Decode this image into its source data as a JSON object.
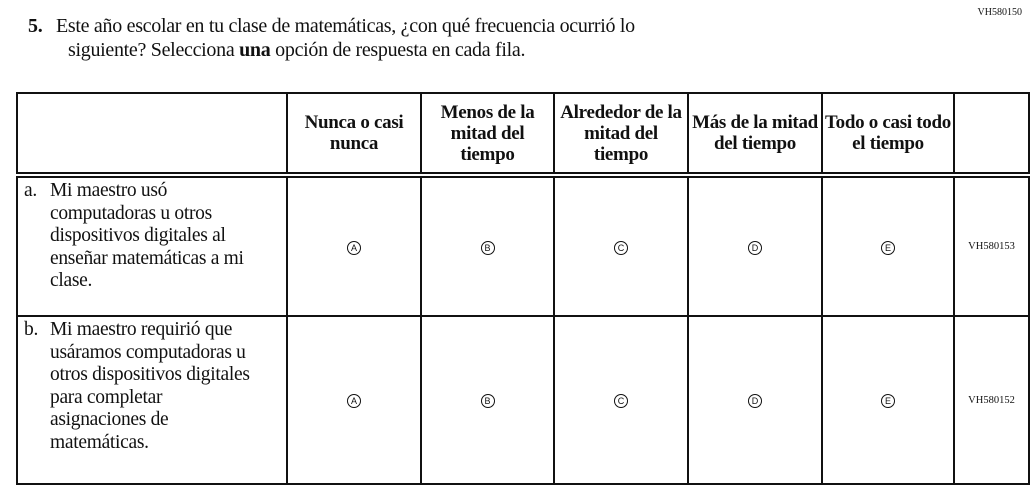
{
  "question_id": "VH580150",
  "question": {
    "number": "5.",
    "line1": "Este año escolar en tu clase de matemáticas, ¿con qué frecuencia ocurrió lo",
    "line2_pre": "siguiente? Selecciona ",
    "line2_bold": "una",
    "line2_post": " opción de respuesta en cada fila."
  },
  "columns": [
    "Nunca o casi nunca",
    "Menos de la mitad del tiempo",
    "Alrededor de la mitad del tiempo",
    "Más de la mitad del tiempo",
    "Todo o casi todo el tiempo"
  ],
  "rows": [
    {
      "label": "a.",
      "text": "Mi maestro usó computadoras u otros dispositivos digitales al enseñar matemáticas a mi clase.",
      "options": [
        "A",
        "B",
        "C",
        "D",
        "E"
      ],
      "code": "VH580153"
    },
    {
      "label": "b.",
      "text": "Mi maestro requirió que usáramos computadoras u otros dispositivos digitales para completar asignaciones de matemáticas.",
      "options": [
        "A",
        "B",
        "C",
        "D",
        "E"
      ],
      "code": "VH580152"
    }
  ]
}
